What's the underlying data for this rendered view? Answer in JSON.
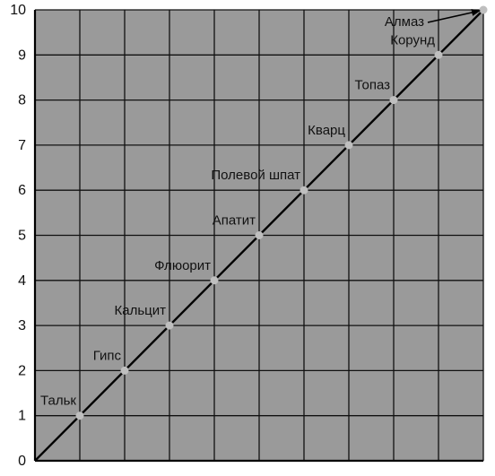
{
  "chart_data": {
    "type": "line",
    "title": "",
    "xlabel": "",
    "ylabel": "",
    "xlim": [
      0,
      10
    ],
    "ylim": [
      0,
      10
    ],
    "grid": true,
    "y_ticks": [
      "0",
      "1",
      "2",
      "3",
      "4",
      "5",
      "6",
      "7",
      "8",
      "9",
      "10"
    ],
    "series": [
      {
        "points": [
          {
            "x": 0,
            "y": 0
          },
          {
            "x": 1,
            "y": 1,
            "label": "Тальк"
          },
          {
            "x": 2,
            "y": 2,
            "label": "Гипс"
          },
          {
            "x": 3,
            "y": 3,
            "label": "Кальцит"
          },
          {
            "x": 4,
            "y": 4,
            "label": "Флюорит"
          },
          {
            "x": 5,
            "y": 5,
            "label": "Апатит"
          },
          {
            "x": 6,
            "y": 6,
            "label": "Полевой шпат"
          },
          {
            "x": 7,
            "y": 7,
            "label": "Кварц"
          },
          {
            "x": 8,
            "y": 8,
            "label": "Топаз"
          },
          {
            "x": 9,
            "y": 9,
            "label": "Корунд"
          },
          {
            "x": 10,
            "y": 10,
            "label": "Алмаз"
          }
        ]
      }
    ],
    "colors": {
      "plot_background": "#9a9a9a",
      "grid": "#111111",
      "line": "#000000",
      "marker": "#bfbfbf"
    }
  }
}
